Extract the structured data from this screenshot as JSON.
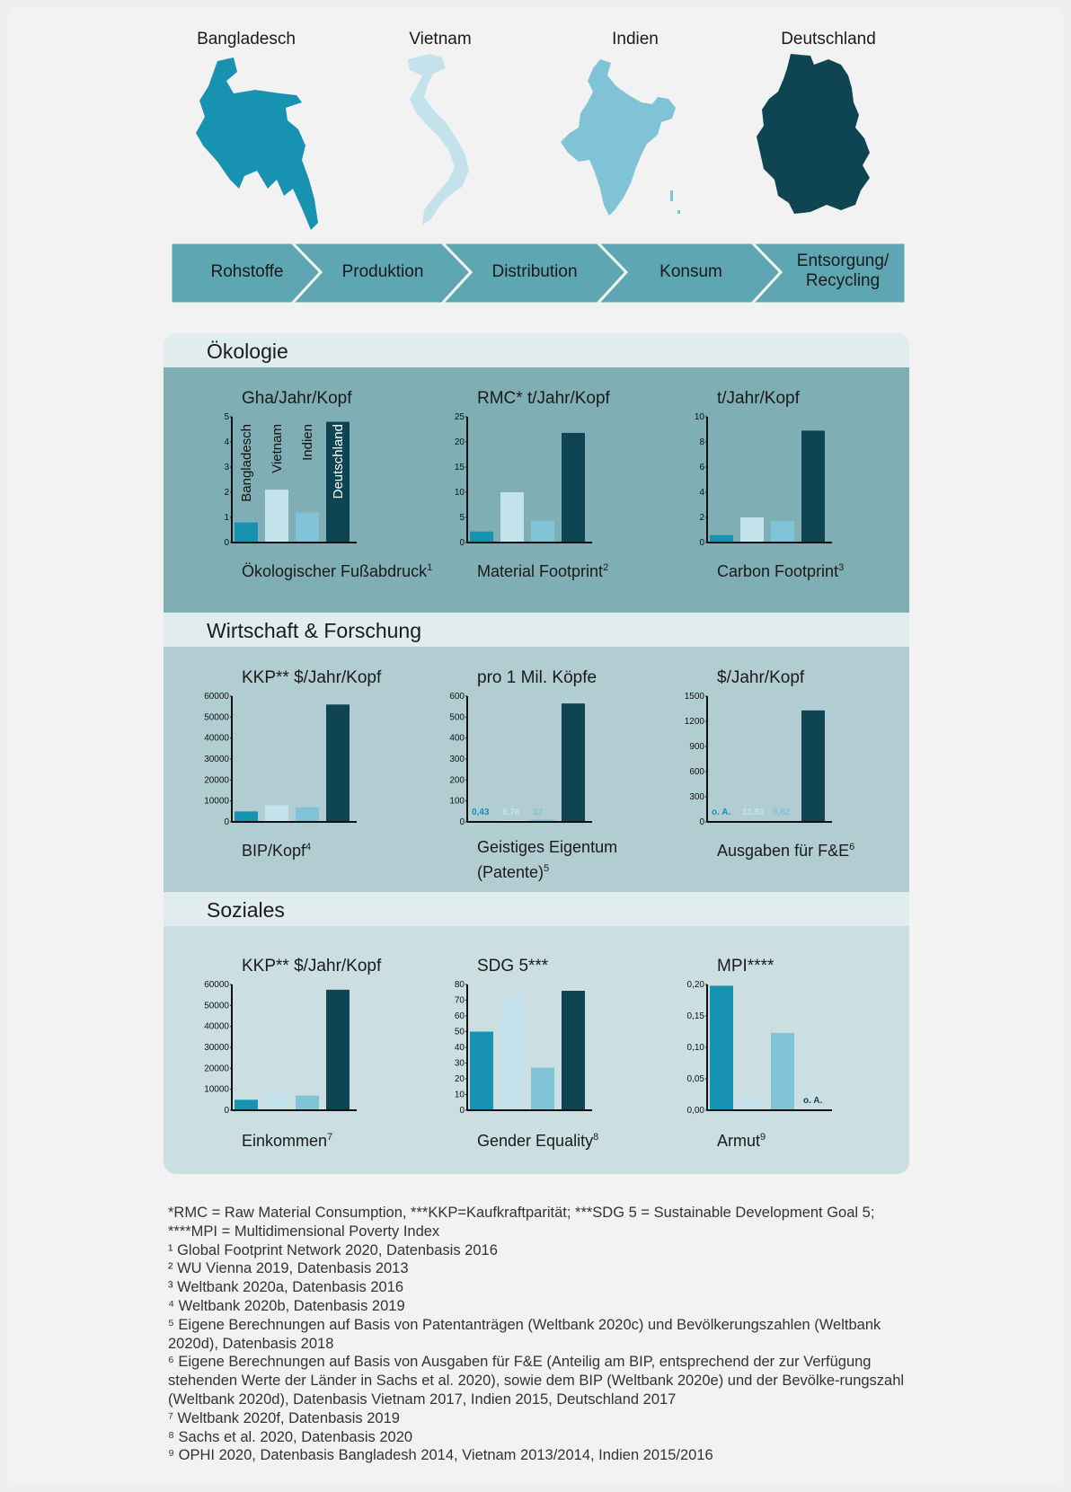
{
  "countries": [
    "Bangladesch",
    "Vietnam",
    "Indien",
    "Deutschland"
  ],
  "colors": {
    "Bangladesch": "#1792b1",
    "Vietnam": "#c3e2ec",
    "Indien": "#80c3d7",
    "Deutschland": "#0f4552"
  },
  "process_steps": [
    "Rohstoffe",
    "Produktion",
    "Distribution",
    "Konsum",
    "Entsorgung/\nRecycling"
  ],
  "sections": [
    {
      "title": "Ökologie"
    },
    {
      "title": "Wirtschaft & Forschung"
    },
    {
      "title": "Soziales"
    }
  ],
  "chart_data": [
    {
      "id": "c1",
      "section": "Ökologie",
      "type": "bar",
      "unit": "Gha/Jahr/Kopf",
      "caption": "Ökologischer Fußabdruck",
      "footnote": "1",
      "categories": [
        "Bangladesch",
        "Vietnam",
        "Indien",
        "Deutschland"
      ],
      "values": [
        0.8,
        2.1,
        1.2,
        4.8
      ],
      "ylim": [
        0,
        5
      ],
      "ticks": [
        "0",
        "1",
        "2",
        "3",
        "4",
        "5"
      ],
      "rotated_labels": true
    },
    {
      "id": "c2",
      "section": "Ökologie",
      "type": "bar",
      "unit": "RMC* t/Jahr/Kopf",
      "caption": "Material Footprint",
      "footnote": "2",
      "categories": [
        "Bangladesch",
        "Vietnam",
        "Indien",
        "Deutschland"
      ],
      "values": [
        2.2,
        10,
        4.3,
        21.8
      ],
      "ylim": [
        0,
        25
      ],
      "ticks": [
        "0",
        "5",
        "10",
        "15",
        "20",
        "25"
      ]
    },
    {
      "id": "c3",
      "section": "Ökologie",
      "type": "bar",
      "unit": "t/Jahr/Kopf",
      "caption": "Carbon Footprint",
      "footnote": "3",
      "categories": [
        "Bangladesch",
        "Vietnam",
        "Indien",
        "Deutschland"
      ],
      "values": [
        0.6,
        2,
        1.7,
        8.9
      ],
      "ylim": [
        0,
        10
      ],
      "ticks": [
        "0",
        "2",
        "4",
        "6",
        "8",
        "10"
      ]
    },
    {
      "id": "c4",
      "section": "Wirtschaft & Forschung",
      "type": "bar",
      "unit": "KKP** $/Jahr/Kopf",
      "caption": "BIP/Kopf",
      "footnote": "4",
      "categories": [
        "Bangladesch",
        "Vietnam",
        "Indien",
        "Deutschland"
      ],
      "values": [
        5000,
        8000,
        7000,
        56000
      ],
      "ylim": [
        0,
        60000
      ],
      "ticks": [
        "0",
        "10000",
        "20000",
        "30000",
        "40000",
        "50000",
        "60000"
      ]
    },
    {
      "id": "c5",
      "section": "Wirtschaft & Forschung",
      "type": "bar",
      "unit": "pro 1 Mil. Köpfe",
      "caption": "Geistiges Eigentum\n(Patente)",
      "footnote": "5",
      "categories": [
        "Bangladesch",
        "Vietnam",
        "Indien",
        "Deutschland"
      ],
      "values": [
        0.43,
        6.76,
        12,
        565
      ],
      "ylim": [
        0,
        600
      ],
      "ticks": [
        "0",
        "100",
        "200",
        "300",
        "400",
        "500",
        "600"
      ],
      "value_labels": [
        "0,43",
        "6,76",
        "12",
        ""
      ]
    },
    {
      "id": "c6",
      "section": "Wirtschaft & Forschung",
      "type": "bar",
      "unit": "$/Jahr/Kopf",
      "caption": "Ausgaben für F&E",
      "footnote": "6",
      "categories": [
        "Bangladesch",
        "Vietnam",
        "Indien",
        "Deutschland"
      ],
      "values": [
        null,
        11.83,
        9.62,
        1330
      ],
      "ylim": [
        0,
        1500
      ],
      "ticks": [
        "0",
        "300",
        "600",
        "900",
        "1200",
        "1500"
      ],
      "value_labels": [
        "o. A.",
        "11,83",
        "9,62",
        ""
      ]
    },
    {
      "id": "c7",
      "section": "Soziales",
      "type": "bar",
      "unit": "KKP** $/Jahr/Kopf",
      "caption": "Einkommen",
      "footnote": "7",
      "categories": [
        "Bangladesch",
        "Vietnam",
        "Indien",
        "Deutschland"
      ],
      "values": [
        5000,
        7500,
        7000,
        57500
      ],
      "ylim": [
        0,
        60000
      ],
      "ticks": [
        "0",
        "10000",
        "20000",
        "30000",
        "40000",
        "50000",
        "60000"
      ]
    },
    {
      "id": "c8",
      "section": "Soziales",
      "type": "bar",
      "unit": "SDG 5***",
      "caption": "Gender Equality",
      "footnote": "8",
      "categories": [
        "Bangladesch",
        "Vietnam",
        "Indien",
        "Deutschland"
      ],
      "values": [
        50,
        73,
        27,
        76
      ],
      "ylim": [
        0,
        80
      ],
      "ticks": [
        "0",
        "10",
        "20",
        "30",
        "40",
        "50",
        "60",
        "70",
        "80"
      ]
    },
    {
      "id": "c9",
      "section": "Soziales",
      "type": "bar",
      "unit": "MPI****",
      "caption": "Armut",
      "footnote": "9",
      "categories": [
        "Bangladesch",
        "Vietnam",
        "Indien",
        "Deutschland"
      ],
      "values": [
        0.198,
        0.019,
        0.123,
        null
      ],
      "ylim": [
        0,
        0.2
      ],
      "ticks": [
        "0,00",
        "0,05",
        "0,10",
        "0,15",
        "0,20"
      ],
      "value_labels": [
        "",
        "",
        "",
        "o. A."
      ]
    }
  ],
  "footnotes": [
    "*RMC = Raw Material Consumption, ***KKP=Kaufkraftparität; ***SDG 5 = Sustainable Development Goal 5; ****MPI = Multidimensional Poverty Index",
    "¹ Global Footprint Network 2020, Datenbasis 2016",
    "² WU Vienna 2019, Datenbasis 2013",
    "³ Weltbank 2020a, Datenbasis 2016",
    "⁴ Weltbank 2020b, Datenbasis 2019",
    "⁵ Eigene Berechnungen auf Basis von Patentanträgen (Weltbank 2020c) und Bevölkerungszahlen (Weltbank 2020d), Datenbasis 2018",
    "⁶ Eigene Berechnungen auf Basis von Ausgaben für F&E (Anteilig am BIP, entsprechend der zur Verfügung stehenden Werte der Länder in Sachs et al. 2020), sowie dem BIP (Weltbank 2020e) und der Bevölke-rungszahl (Weltbank 2020d), Datenbasis Vietnam 2017, Indien 2015, Deutschland 2017",
    "⁷ Weltbank 2020f, Datenbasis 2019",
    "⁸ Sachs et al. 2020, Datenbasis 2020",
    "⁹ OPHI 2020, Datenbasis Bangladesh 2014, Vietnam 2013/2014, Indien 2015/2016"
  ]
}
